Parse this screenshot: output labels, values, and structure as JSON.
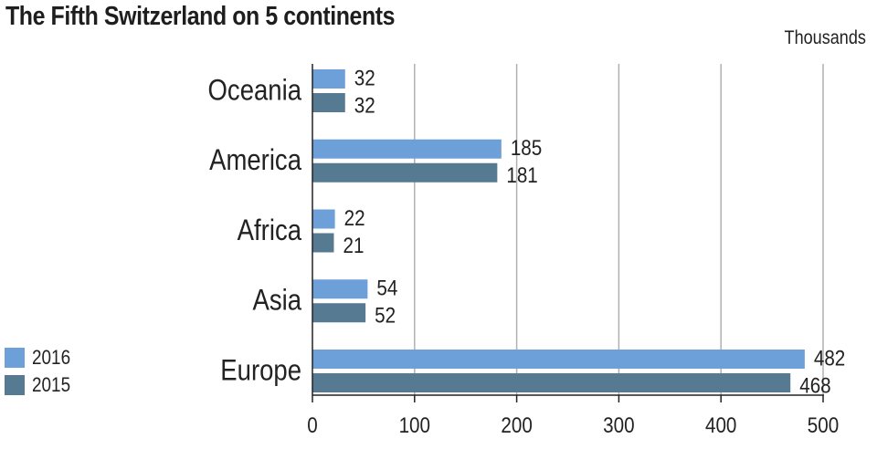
{
  "title": "The Fifth Switzerland on 5 continents",
  "unit_label": "Thousands",
  "colors": {
    "2016": "#6d9fd8",
    "2015": "#567a92",
    "grid": "#b0b0b0",
    "axis": "#222222"
  },
  "chart_data": {
    "type": "bar",
    "orientation": "horizontal",
    "title": "The Fifth Switzerland on 5 continents",
    "xlabel": "Thousands",
    "ylabel": "",
    "categories": [
      "Oceania",
      "America",
      "Africa",
      "Asia",
      "Europe"
    ],
    "series": [
      {
        "name": "2016",
        "values": [
          32,
          185,
          22,
          54,
          482
        ]
      },
      {
        "name": "2015",
        "values": [
          32,
          181,
          21,
          52,
          468
        ]
      }
    ],
    "xlim": [
      0,
      500
    ],
    "xticks": [
      "0",
      "100",
      "200",
      "300",
      "400",
      "500"
    ],
    "grid": true,
    "legend_position": "bottom-left"
  }
}
